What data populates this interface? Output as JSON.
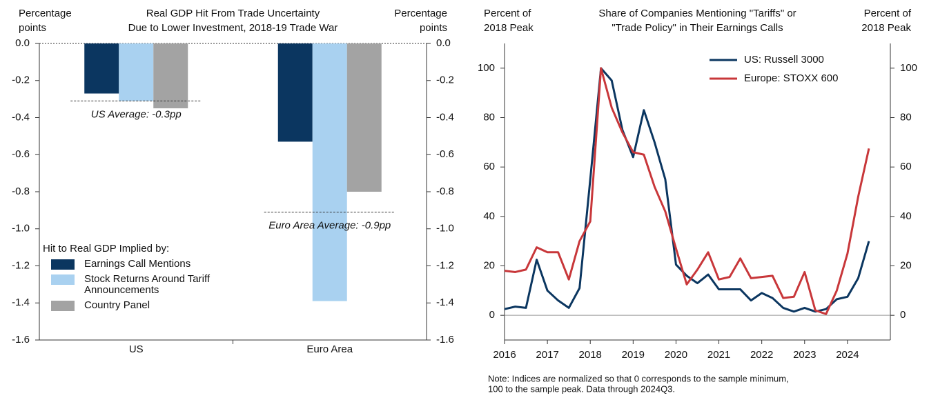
{
  "chart_data": [
    {
      "type": "bar",
      "title": [
        "Real GDP Hit From Trade Uncertainty",
        "Due to Lower Investment, 2018-19 Trade War"
      ],
      "ylabel": [
        "Percentage",
        "points"
      ],
      "y2label": [
        "Percentage",
        "points"
      ],
      "categories": [
        "US",
        "Euro Area"
      ],
      "series": [
        {
          "name": "Earnings Call Mentions",
          "color": "#0b3660",
          "values": [
            -0.27,
            -0.53
          ]
        },
        {
          "name": "Stock Returns Around Tariff Announcements",
          "color": "#a9d1f0",
          "values": [
            -0.31,
            -1.39
          ]
        },
        {
          "name": "Country Panel",
          "color": "#a3a3a3",
          "values": [
            -0.35,
            -0.8
          ]
        }
      ],
      "ylim": [
        -1.6,
        0
      ],
      "yticks": [
        {
          "value": 0,
          "label": "0.0"
        },
        -0.2,
        -0.4,
        -0.6,
        -0.8,
        {
          "value": -1,
          "label": "-1.0"
        },
        -1.2,
        -1.4,
        -1.6
      ],
      "y2lim": [
        -1.6,
        0
      ],
      "y2ticks": [
        {
          "value": 0,
          "label": "0.0"
        },
        -0.2,
        -0.4,
        -0.6,
        -0.8,
        {
          "value": -1,
          "label": "-1.0"
        },
        -1.2,
        -1.4,
        -1.6
      ],
      "zero_line": true,
      "annotations": [
        {
          "text": "US Average: -0.3pp",
          "value": -0.31
        },
        {
          "text": "Euro Area Average: -0.9pp",
          "value": -0.91
        }
      ],
      "legend_title": "Hit to Real GDP Implied by:",
      "legend": "lower left"
    },
    {
      "type": "line",
      "title": [
        "Share of Companies Mentioning \"Tariffs\" or",
        "\"Trade Policy\" in Their Earnings Calls"
      ],
      "ylabel": [
        "Percent of",
        "2018 Peak"
      ],
      "y2label": [
        "Percent of",
        "2018 Peak"
      ],
      "x": [
        2016,
        2016.25,
        2016.5,
        2016.75,
        2017,
        2017.25,
        2017.5,
        2017.75,
        2018,
        2018.25,
        2018.5,
        2018.75,
        2019,
        2019.25,
        2019.5,
        2019.75,
        2020,
        2020.25,
        2020.5,
        2020.75,
        2021,
        2021.25,
        2021.5,
        2021.75,
        2022,
        2022.25,
        2022.5,
        2022.75,
        2023,
        2023.25,
        2023.5,
        2023.75,
        2024,
        2024.25,
        2024.5
      ],
      "series": [
        {
          "name": "US: Russell 3000",
          "color": "#0b3660",
          "values": [
            2.5,
            3.5,
            3,
            22.5,
            10,
            6,
            3,
            11,
            55,
            100,
            95,
            75,
            64,
            83,
            70,
            55,
            20.5,
            16,
            13,
            16.5,
            10.5,
            10.5,
            10.5,
            6,
            9,
            7,
            3,
            1.5,
            3,
            1.5,
            2.5,
            6.5,
            7.5,
            15,
            30
          ]
        },
        {
          "name": "Europe: STOXX 600",
          "color": "#c8373a",
          "values": [
            18,
            17.5,
            18.5,
            27.5,
            25.5,
            25.5,
            14.5,
            30,
            38,
            100,
            84,
            74,
            66,
            65,
            52,
            42,
            27,
            12.5,
            18.5,
            25.5,
            14.5,
            15.5,
            23,
            15,
            15.5,
            16,
            7,
            7.5,
            17.5,
            2,
            0.5,
            10,
            25,
            48,
            67.5
          ]
        }
      ],
      "xlim": [
        2016,
        2025
      ],
      "xticks": [
        2016,
        2017,
        2018,
        2019,
        2020,
        2021,
        2022,
        2023,
        2024
      ],
      "ylim": [
        -10,
        110
      ],
      "yticks": [
        0,
        20,
        40,
        60,
        80,
        100
      ],
      "y2lim": [
        -10,
        110
      ],
      "y2ticks": [
        0,
        20,
        40,
        60,
        80,
        100
      ],
      "zero_line": true,
      "legend": "upper right",
      "note": [
        "Note: Indices are normalized so that 0 corresponds to the sample minimum,",
        "100 to the sample peak. Data through 2024Q3."
      ]
    }
  ]
}
